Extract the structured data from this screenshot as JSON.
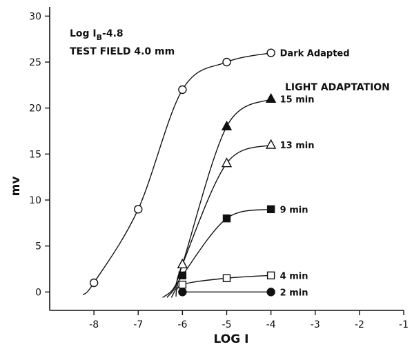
{
  "chart_data": {
    "type": "line",
    "title": "",
    "xlabel": "LOG I",
    "ylabel": "mv",
    "xlim": [
      -9,
      -1
    ],
    "ylim": [
      -2,
      31
    ],
    "xticks": [
      -8,
      -7,
      -6,
      -5,
      -4,
      -3,
      -2,
      -1
    ],
    "yticks": [
      0,
      5,
      10,
      15,
      20,
      25,
      30
    ],
    "grid": false,
    "annotations": {
      "line1_main": "Log I",
      "line1_sub": "B",
      "line1_value": "-4.8",
      "line2": "TEST FIELD 4.0 mm",
      "group_heading": "LIGHT ADAPTATION"
    },
    "series": [
      {
        "name": "Dark Adapted",
        "marker": "open-circle",
        "x": [
          -8,
          -7,
          -6,
          -5,
          -4
        ],
        "y": [
          1,
          9,
          22,
          25,
          26
        ]
      },
      {
        "name": "15 min",
        "marker": "filled-triangle",
        "x": [
          -6,
          -5,
          -4
        ],
        "y": [
          3,
          18,
          21
        ]
      },
      {
        "name": "13 min",
        "marker": "open-triangle",
        "x": [
          -6,
          -5,
          -4
        ],
        "y": [
          3,
          14,
          16
        ]
      },
      {
        "name": "9 min",
        "marker": "filled-square",
        "x": [
          -6,
          -5,
          -4
        ],
        "y": [
          1.8,
          8,
          9
        ]
      },
      {
        "name": "4 min",
        "marker": "open-square",
        "x": [
          -6,
          -5,
          -4
        ],
        "y": [
          0.8,
          1.5,
          1.8
        ]
      },
      {
        "name": "2 min",
        "marker": "filled-circle",
        "x": [
          -6,
          -4
        ],
        "y": [
          0,
          0
        ]
      }
    ]
  }
}
